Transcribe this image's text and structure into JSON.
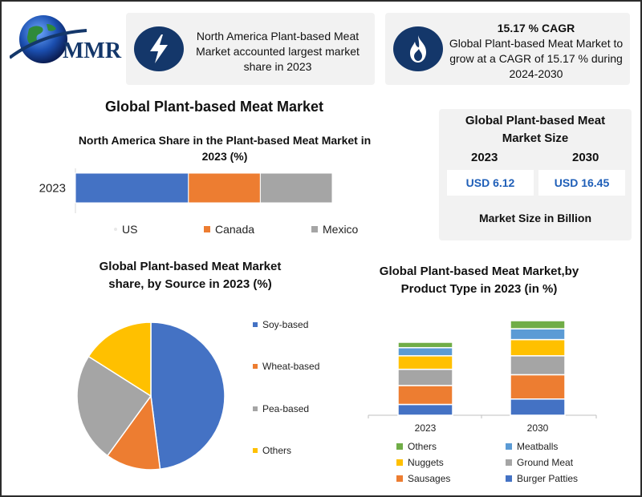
{
  "brand": {
    "name": "MMR"
  },
  "header": {
    "card1_text": "North America Plant-based Meat Market accounted largest market share in 2023",
    "card2_title": "15.17 % CAGR",
    "card2_text": "Global Plant-based Meat Market to grow at a CAGR of 15.17 % during 2024-2030",
    "card1_icon": "lightning-bolt-icon",
    "card2_icon": "flame-icon"
  },
  "main_title": "Global Plant-based Meat Market",
  "market_size": {
    "title": "Global Plant-based Meat Market Size",
    "year1": "2023",
    "year2": "2030",
    "value1": "USD 6.12",
    "value2": "USD 16.45",
    "caption": "Market Size in Billion"
  },
  "colors": {
    "blue": "#4472c4",
    "orange": "#ed7d31",
    "gray": "#a5a5a5",
    "yellow": "#ffc000",
    "lightblue": "#5b9bd5",
    "green": "#70ad47",
    "navy": "#14376a"
  },
  "chart_data": [
    {
      "type": "bar",
      "orientation": "horizontal-stacked",
      "title": "North America Share in the Plant-based Meat Market in 2023 (%)",
      "categories": [
        "2023"
      ],
      "series": [
        {
          "name": "US",
          "values": [
            44
          ],
          "color": "#4472c4"
        },
        {
          "name": "Canada",
          "values": [
            28
          ],
          "color": "#ed7d31"
        },
        {
          "name": "Mexico",
          "values": [
            28
          ],
          "color": "#a5a5a5"
        }
      ],
      "xlim": [
        0,
        100
      ],
      "legend": "bottom"
    },
    {
      "type": "pie",
      "title": "Global Plant-based Meat Market share, by Source in 2023 (%)",
      "labels": [
        "Soy-based",
        "Wheat-based",
        "Pea-based",
        "Others"
      ],
      "values": [
        48,
        12,
        24,
        16
      ],
      "colors": [
        "#4472c4",
        "#ed7d31",
        "#a5a5a5",
        "#ffc000"
      ],
      "legend": "right"
    },
    {
      "type": "bar",
      "orientation": "vertical-stacked",
      "title": "Global Plant-based Meat Market,by Product Type in 2023 (in %)",
      "categories": [
        "2023",
        "2030"
      ],
      "series": [
        {
          "name": "Burger Patties",
          "values": [
            4,
            6
          ],
          "color": "#4472c4"
        },
        {
          "name": "Sausages",
          "values": [
            7,
            9
          ],
          "color": "#ed7d31"
        },
        {
          "name": "Ground Meat",
          "values": [
            6,
            7
          ],
          "color": "#a5a5a5"
        },
        {
          "name": "Nuggets",
          "values": [
            5,
            6
          ],
          "color": "#ffc000"
        },
        {
          "name": "Meatballs",
          "values": [
            3,
            4
          ],
          "color": "#5b9bd5"
        },
        {
          "name": "Others",
          "values": [
            2,
            3
          ],
          "color": "#70ad47"
        }
      ],
      "legend": "bottom"
    }
  ]
}
